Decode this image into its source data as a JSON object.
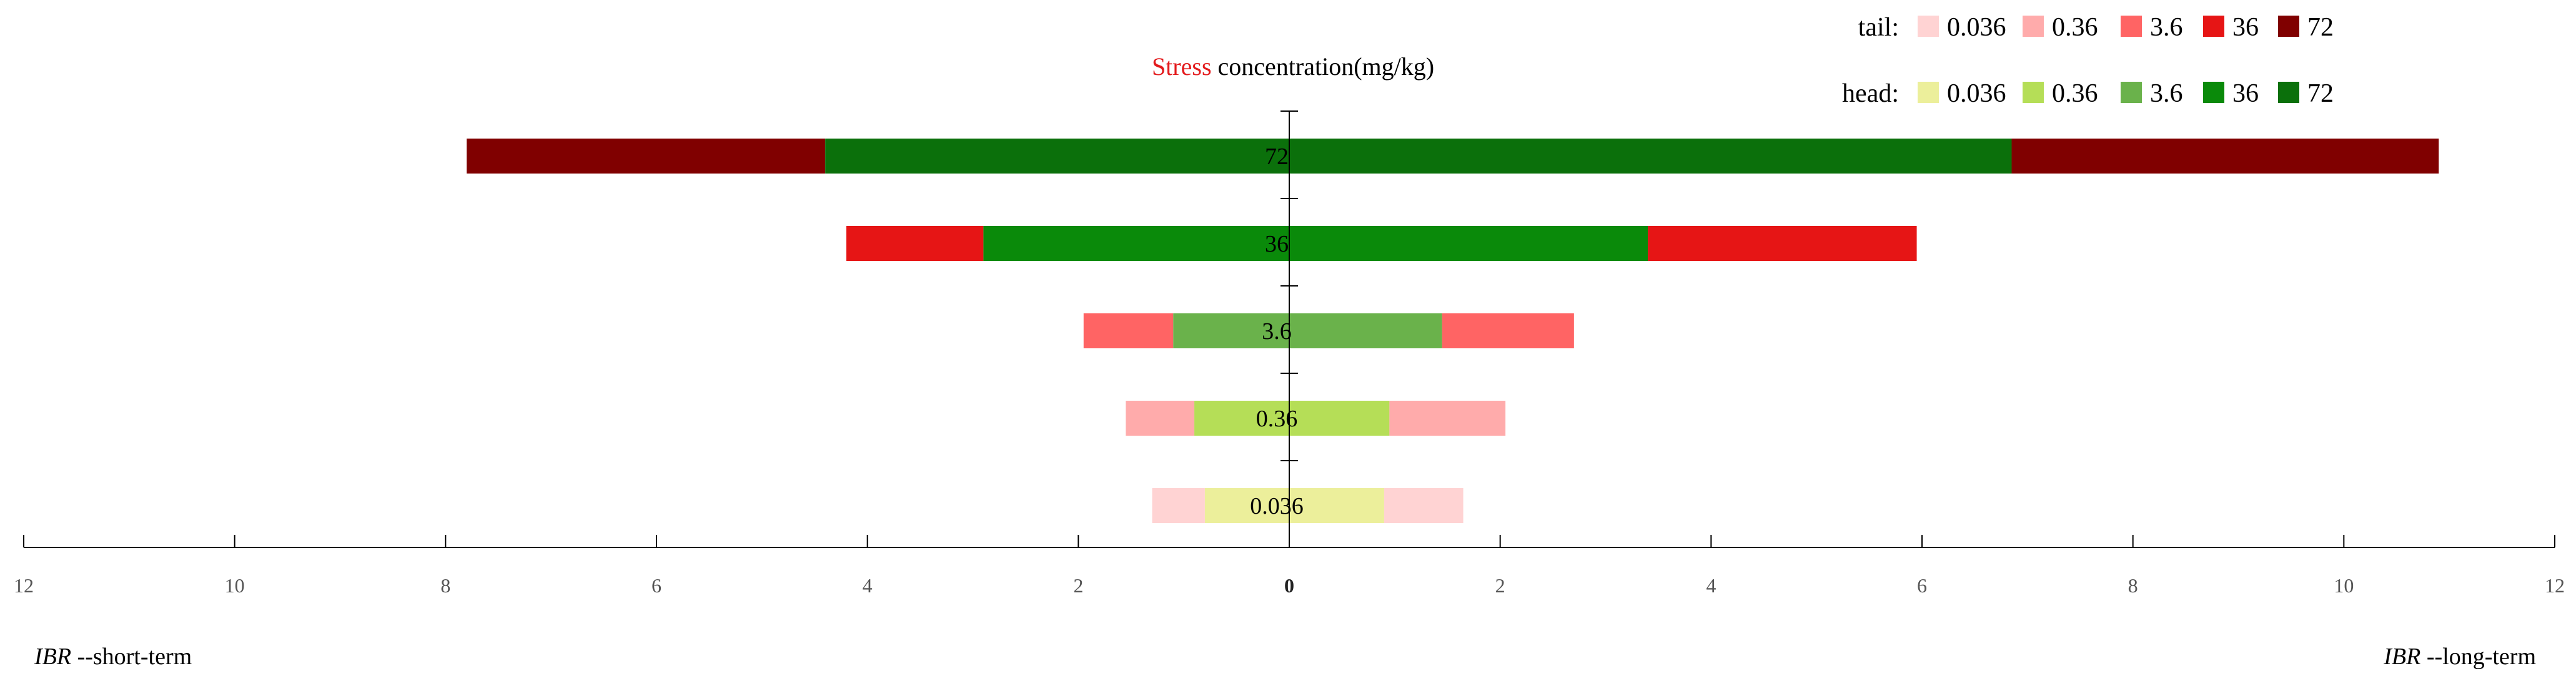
{
  "chart_data": {
    "type": "bar",
    "orientation": "horizontal-diverging",
    "title": {
      "highlight": "Stress",
      "rest": " concentration(mg/kg)",
      "highlight_color": "#e31a1c"
    },
    "x_axis": {
      "ticks": [
        12,
        10,
        8,
        6,
        4,
        2,
        0,
        2,
        4,
        6,
        8,
        10,
        12
      ],
      "range": [
        -12,
        12
      ]
    },
    "left_label": {
      "italic": "IBR",
      "rest": " --short-term"
    },
    "right_label": {
      "italic": "IBR",
      "rest": " --long-term"
    },
    "categories": [
      "72",
      "36",
      "3.6",
      "0.36",
      "0.036"
    ],
    "series": [
      {
        "name": "head",
        "side": "short-term",
        "values": [
          4.4,
          2.9,
          1.1,
          0.9,
          0.8
        ]
      },
      {
        "name": "tail",
        "side": "short-term",
        "values": [
          7.8,
          4.2,
          1.95,
          1.55,
          1.3
        ]
      },
      {
        "name": "head",
        "side": "long-term",
        "values": [
          6.85,
          3.4,
          1.45,
          0.95,
          0.9
        ]
      },
      {
        "name": "tail",
        "side": "long-term",
        "values": [
          10.9,
          5.95,
          2.7,
          2.05,
          1.65
        ]
      }
    ],
    "colors": {
      "tail": [
        "#ffd3d3",
        "#ffabab",
        "#ff6464",
        "#e61515",
        "#800000"
      ],
      "head": [
        "#ecef9b",
        "#b5de57",
        "#6ab24b",
        "#0a8a0a",
        "#0b700b"
      ]
    },
    "legend": {
      "tail": {
        "label": "tail:",
        "items": [
          "0.036",
          "0.36",
          "3.6",
          "36",
          "72"
        ]
      },
      "head": {
        "label": "head:",
        "items": [
          "0.036",
          "0.36",
          "3.6",
          "36",
          "72"
        ]
      }
    }
  }
}
